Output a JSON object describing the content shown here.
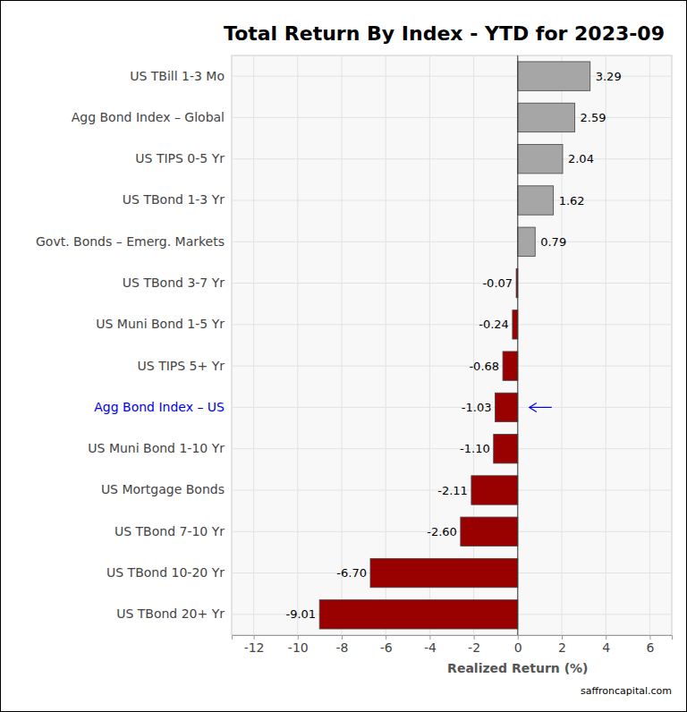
{
  "chart_data": {
    "type": "bar",
    "orientation": "horizontal",
    "title": "Total Return By Index - YTD for 2023-09",
    "x_label": "Realized Return (%)",
    "annotations": [
      "saffroncapital.com"
    ],
    "categories": [
      "US TBill 1-3 Mo",
      "Agg Bond Index – Global",
      "US TIPS 0-5 Yr",
      "US TBond 1-3 Yr",
      "Govt. Bonds – Emerg. Markets",
      "US TBond 3-7 Yr",
      "US Muni Bond 1-5 Yr",
      "US TIPS 5+ Yr",
      "Agg Bond Index – US",
      "US Muni Bond 1-10 Yr",
      "US Mortgage Bonds",
      "US TBond 7-10 Yr",
      "US TBond 10-20 Yr",
      "US TBond 20+ Yr"
    ],
    "values": [
      3.29,
      2.59,
      2.04,
      1.62,
      0.79,
      -0.07,
      -0.24,
      -0.68,
      -1.03,
      -1.1,
      -2.11,
      -2.6,
      -6.7,
      -9.01
    ],
    "value_labels": [
      "3.29",
      "2.59",
      "2.04",
      "1.62",
      "0.79",
      "-0.07",
      "-0.24",
      "-0.68",
      "-1.03",
      "-1.10",
      "-2.11",
      "-2.60",
      "-6.70",
      "-9.01"
    ],
    "colors": [
      "#a6a6a6",
      "#a6a6a6",
      "#a6a6a6",
      "#a6a6a6",
      "#a6a6a6",
      "#990000",
      "#990000",
      "#990000",
      "#990000",
      "#990000",
      "#990000",
      "#990000",
      "#990000",
      "#990000"
    ],
    "highlight": "Agg Bond Index – US",
    "xlim": [
      -13,
      7
    ],
    "xticks": [
      -12,
      -10,
      -8,
      -6,
      -4,
      -2,
      0,
      2,
      4,
      6
    ],
    "grid": true,
    "data_labels": true
  }
}
